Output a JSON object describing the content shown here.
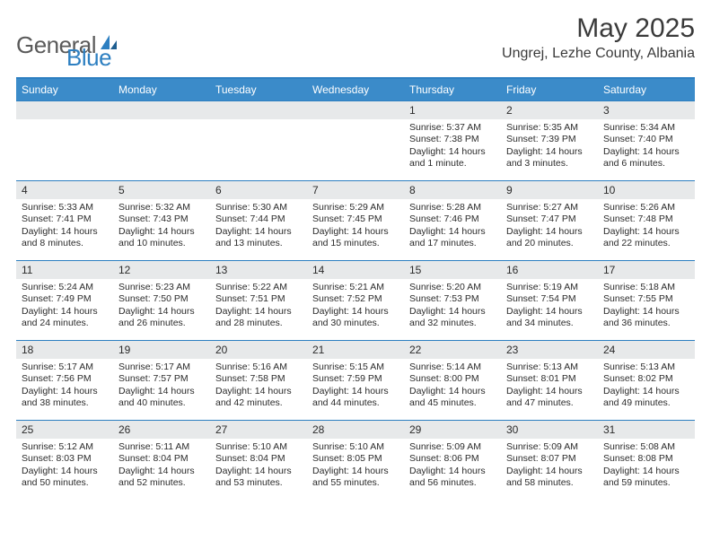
{
  "brand": {
    "general": "General",
    "blue": "Blue"
  },
  "title": "May 2025",
  "location": "Ungrej, Lezhe County, Albania",
  "accent_color": "#3b8bc9",
  "border_color": "#2d7fc1",
  "daynum_bg": "#e7e9ea",
  "day_headers": [
    "Sunday",
    "Monday",
    "Tuesday",
    "Wednesday",
    "Thursday",
    "Friday",
    "Saturday"
  ],
  "weeks": [
    [
      null,
      null,
      null,
      null,
      {
        "num": "1",
        "sunrise": "Sunrise: 5:37 AM",
        "sunset": "Sunset: 7:38 PM",
        "daylight": "Daylight: 14 hours and 1 minute."
      },
      {
        "num": "2",
        "sunrise": "Sunrise: 5:35 AM",
        "sunset": "Sunset: 7:39 PM",
        "daylight": "Daylight: 14 hours and 3 minutes."
      },
      {
        "num": "3",
        "sunrise": "Sunrise: 5:34 AM",
        "sunset": "Sunset: 7:40 PM",
        "daylight": "Daylight: 14 hours and 6 minutes."
      }
    ],
    [
      {
        "num": "4",
        "sunrise": "Sunrise: 5:33 AM",
        "sunset": "Sunset: 7:41 PM",
        "daylight": "Daylight: 14 hours and 8 minutes."
      },
      {
        "num": "5",
        "sunrise": "Sunrise: 5:32 AM",
        "sunset": "Sunset: 7:43 PM",
        "daylight": "Daylight: 14 hours and 10 minutes."
      },
      {
        "num": "6",
        "sunrise": "Sunrise: 5:30 AM",
        "sunset": "Sunset: 7:44 PM",
        "daylight": "Daylight: 14 hours and 13 minutes."
      },
      {
        "num": "7",
        "sunrise": "Sunrise: 5:29 AM",
        "sunset": "Sunset: 7:45 PM",
        "daylight": "Daylight: 14 hours and 15 minutes."
      },
      {
        "num": "8",
        "sunrise": "Sunrise: 5:28 AM",
        "sunset": "Sunset: 7:46 PM",
        "daylight": "Daylight: 14 hours and 17 minutes."
      },
      {
        "num": "9",
        "sunrise": "Sunrise: 5:27 AM",
        "sunset": "Sunset: 7:47 PM",
        "daylight": "Daylight: 14 hours and 20 minutes."
      },
      {
        "num": "10",
        "sunrise": "Sunrise: 5:26 AM",
        "sunset": "Sunset: 7:48 PM",
        "daylight": "Daylight: 14 hours and 22 minutes."
      }
    ],
    [
      {
        "num": "11",
        "sunrise": "Sunrise: 5:24 AM",
        "sunset": "Sunset: 7:49 PM",
        "daylight": "Daylight: 14 hours and 24 minutes."
      },
      {
        "num": "12",
        "sunrise": "Sunrise: 5:23 AM",
        "sunset": "Sunset: 7:50 PM",
        "daylight": "Daylight: 14 hours and 26 minutes."
      },
      {
        "num": "13",
        "sunrise": "Sunrise: 5:22 AM",
        "sunset": "Sunset: 7:51 PM",
        "daylight": "Daylight: 14 hours and 28 minutes."
      },
      {
        "num": "14",
        "sunrise": "Sunrise: 5:21 AM",
        "sunset": "Sunset: 7:52 PM",
        "daylight": "Daylight: 14 hours and 30 minutes."
      },
      {
        "num": "15",
        "sunrise": "Sunrise: 5:20 AM",
        "sunset": "Sunset: 7:53 PM",
        "daylight": "Daylight: 14 hours and 32 minutes."
      },
      {
        "num": "16",
        "sunrise": "Sunrise: 5:19 AM",
        "sunset": "Sunset: 7:54 PM",
        "daylight": "Daylight: 14 hours and 34 minutes."
      },
      {
        "num": "17",
        "sunrise": "Sunrise: 5:18 AM",
        "sunset": "Sunset: 7:55 PM",
        "daylight": "Daylight: 14 hours and 36 minutes."
      }
    ],
    [
      {
        "num": "18",
        "sunrise": "Sunrise: 5:17 AM",
        "sunset": "Sunset: 7:56 PM",
        "daylight": "Daylight: 14 hours and 38 minutes."
      },
      {
        "num": "19",
        "sunrise": "Sunrise: 5:17 AM",
        "sunset": "Sunset: 7:57 PM",
        "daylight": "Daylight: 14 hours and 40 minutes."
      },
      {
        "num": "20",
        "sunrise": "Sunrise: 5:16 AM",
        "sunset": "Sunset: 7:58 PM",
        "daylight": "Daylight: 14 hours and 42 minutes."
      },
      {
        "num": "21",
        "sunrise": "Sunrise: 5:15 AM",
        "sunset": "Sunset: 7:59 PM",
        "daylight": "Daylight: 14 hours and 44 minutes."
      },
      {
        "num": "22",
        "sunrise": "Sunrise: 5:14 AM",
        "sunset": "Sunset: 8:00 PM",
        "daylight": "Daylight: 14 hours and 45 minutes."
      },
      {
        "num": "23",
        "sunrise": "Sunrise: 5:13 AM",
        "sunset": "Sunset: 8:01 PM",
        "daylight": "Daylight: 14 hours and 47 minutes."
      },
      {
        "num": "24",
        "sunrise": "Sunrise: 5:13 AM",
        "sunset": "Sunset: 8:02 PM",
        "daylight": "Daylight: 14 hours and 49 minutes."
      }
    ],
    [
      {
        "num": "25",
        "sunrise": "Sunrise: 5:12 AM",
        "sunset": "Sunset: 8:03 PM",
        "daylight": "Daylight: 14 hours and 50 minutes."
      },
      {
        "num": "26",
        "sunrise": "Sunrise: 5:11 AM",
        "sunset": "Sunset: 8:04 PM",
        "daylight": "Daylight: 14 hours and 52 minutes."
      },
      {
        "num": "27",
        "sunrise": "Sunrise: 5:10 AM",
        "sunset": "Sunset: 8:04 PM",
        "daylight": "Daylight: 14 hours and 53 minutes."
      },
      {
        "num": "28",
        "sunrise": "Sunrise: 5:10 AM",
        "sunset": "Sunset: 8:05 PM",
        "daylight": "Daylight: 14 hours and 55 minutes."
      },
      {
        "num": "29",
        "sunrise": "Sunrise: 5:09 AM",
        "sunset": "Sunset: 8:06 PM",
        "daylight": "Daylight: 14 hours and 56 minutes."
      },
      {
        "num": "30",
        "sunrise": "Sunrise: 5:09 AM",
        "sunset": "Sunset: 8:07 PM",
        "daylight": "Daylight: 14 hours and 58 minutes."
      },
      {
        "num": "31",
        "sunrise": "Sunrise: 5:08 AM",
        "sunset": "Sunset: 8:08 PM",
        "daylight": "Daylight: 14 hours and 59 minutes."
      }
    ]
  ]
}
